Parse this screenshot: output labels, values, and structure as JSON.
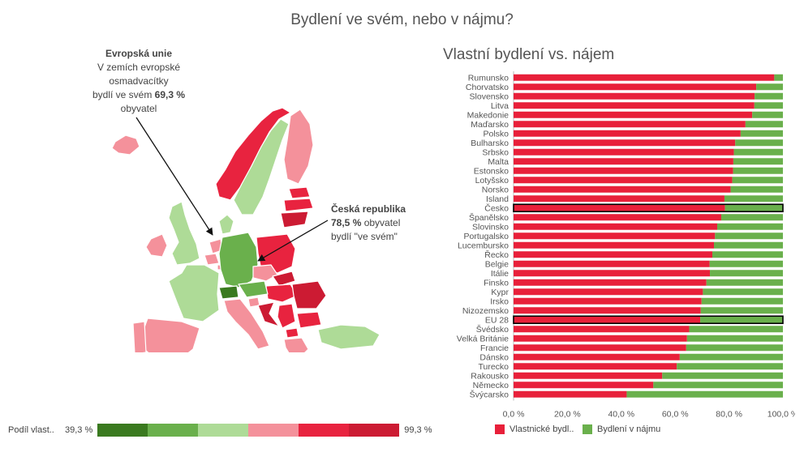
{
  "page_title": "Bydlení ve svém, nebo v nájmu?",
  "colors": {
    "own": "#e8203a",
    "rent": "#6ab04c",
    "scale": [
      "#3a7a1f",
      "#6ab04c",
      "#aedb97",
      "#f4919b",
      "#e8233f",
      "#cc1b33"
    ],
    "highlight_border": "#000000"
  },
  "eu_note": {
    "title": "Evropská unie",
    "line1": "V zemích evropské",
    "line2": "osmadvacítky",
    "line3_pre": "bydlí ve svém",
    "line3_value": "69,3 %",
    "line4": "obyvatel"
  },
  "cz_note": {
    "title": "Česká republika",
    "value": "78,5 %",
    "line1_post": "obyvatel",
    "line2": "bydlí \"ve svém\""
  },
  "map_legend": {
    "label": "Podíl vlast..",
    "min": "39,3 %",
    "max": "99,3 %"
  },
  "chart_data": [
    {
      "type": "bar",
      "orientation": "horizontal",
      "stacked": true,
      "normalized": true,
      "title": "Vlastní bydlení vs. nájem",
      "categories": [
        "Rumunsko",
        "Chorvatsko",
        "Slovensko",
        "Litva",
        "Makedonie",
        "Maďarsko",
        "Polsko",
        "Bulharsko",
        "Srbsko",
        "Malta",
        "Estonsko",
        "Lotyšsko",
        "Norsko",
        "Island",
        "Česko",
        "Španělsko",
        "Slovinsko",
        "Portugalsko",
        "Lucembursko",
        "Řecko",
        "Belgie",
        "Itálie",
        "Finsko",
        "Kypr",
        "Irsko",
        "Nizozemsko",
        "EU 28",
        "Švédsko",
        "Velká Británie",
        "Francie",
        "Dánsko",
        "Turecko",
        "Rakousko",
        "Německo",
        "Švýcarsko"
      ],
      "highlighted_categories": [
        "Česko",
        "EU 28"
      ],
      "series": [
        {
          "name": "Vlastnické bydl..",
          "color": "#e8203a",
          "values": [
            96.8,
            90.1,
            89.5,
            89.4,
            88.6,
            86.1,
            84.3,
            82.3,
            81.8,
            81.6,
            81.5,
            81.2,
            80.6,
            78.3,
            78.5,
            77.1,
            75.6,
            74.8,
            74.4,
            73.8,
            72.8,
            72.9,
            71.6,
            70.3,
            69.8,
            69.5,
            69.3,
            65.2,
            64.4,
            64.1,
            61.7,
            60.6,
            55.2,
            51.9,
            42.0
          ]
        },
        {
          "name": "Bydlení v nájmu",
          "color": "#6ab04c",
          "values": [
            3.2,
            9.9,
            10.5,
            10.6,
            11.4,
            13.9,
            15.7,
            17.7,
            18.2,
            18.4,
            18.5,
            18.8,
            19.4,
            21.7,
            21.5,
            22.9,
            24.4,
            25.2,
            25.6,
            26.2,
            27.2,
            27.1,
            28.4,
            29.7,
            30.2,
            30.5,
            30.7,
            34.8,
            35.6,
            35.9,
            38.3,
            39.4,
            44.8,
            48.1,
            58.0
          ]
        }
      ],
      "x_ticks": [
        "0,0 %",
        "20,0 %",
        "40,0 %",
        "60,0 %",
        "80,0 %",
        "100,0 %"
      ],
      "xlim": [
        0,
        100
      ],
      "legend_position": "bottom",
      "grid": false
    },
    {
      "type": "map",
      "title": "",
      "value_range": [
        39.3,
        99.3
      ],
      "unit": "%",
      "regions": [
        {
          "name": "Island",
          "value": 78.3
        },
        {
          "name": "Norsko",
          "value": 80.6
        },
        {
          "name": "Švédsko",
          "value": 65.2
        },
        {
          "name": "Finsko",
          "value": 71.6
        },
        {
          "name": "Estonsko",
          "value": 81.5
        },
        {
          "name": "Lotyšsko",
          "value": 81.2
        },
        {
          "name": "Litva",
          "value": 89.4
        },
        {
          "name": "Irsko",
          "value": 69.8
        },
        {
          "name": "Velká Británie",
          "value": 64.4
        },
        {
          "name": "Dánsko",
          "value": 61.7
        },
        {
          "name": "Nizozemsko",
          "value": 69.5
        },
        {
          "name": "Belgie",
          "value": 72.8
        },
        {
          "name": "Lucembursko",
          "value": 74.4
        },
        {
          "name": "Německo",
          "value": 51.9
        },
        {
          "name": "Polsko",
          "value": 84.3
        },
        {
          "name": "Česko",
          "value": 78.5
        },
        {
          "name": "Slovensko",
          "value": 89.5
        },
        {
          "name": "Maďarsko",
          "value": 86.1
        },
        {
          "name": "Rakousko",
          "value": 55.2
        },
        {
          "name": "Švýcarsko",
          "value": 42.0
        },
        {
          "name": "Francie",
          "value": 64.1
        },
        {
          "name": "Španělsko",
          "value": 77.1
        },
        {
          "name": "Portugalsko",
          "value": 74.8
        },
        {
          "name": "Itálie",
          "value": 72.9
        },
        {
          "name": "Slovinsko",
          "value": 75.6
        },
        {
          "name": "Chorvatsko",
          "value": 90.1
        },
        {
          "name": "Srbsko",
          "value": 81.8
        },
        {
          "name": "Rumunsko",
          "value": 96.8
        },
        {
          "name": "Bulharsko",
          "value": 82.3
        },
        {
          "name": "Makedonie",
          "value": 88.6
        },
        {
          "name": "Řecko",
          "value": 73.8
        },
        {
          "name": "Turecko",
          "value": 60.6
        },
        {
          "name": "Kypr",
          "value": 70.3
        },
        {
          "name": "Malta",
          "value": 81.6
        }
      ]
    }
  ]
}
